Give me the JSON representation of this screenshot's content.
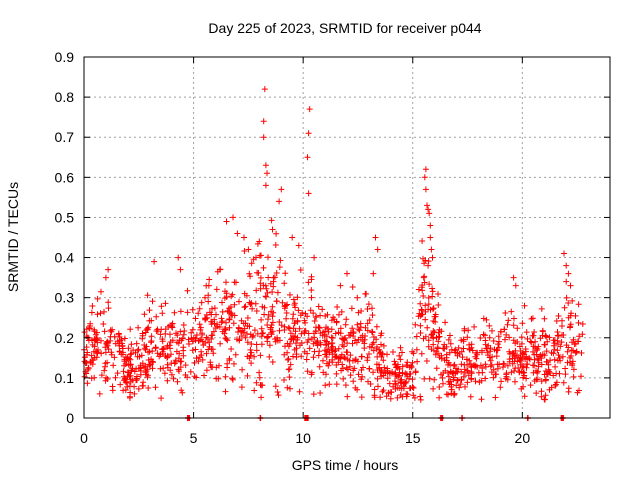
{
  "chart_data": {
    "type": "scatter",
    "title": "Day 225 of 2023, SRMTID for receiver p044",
    "xlabel": "GPS time / hours",
    "ylabel": "SRMTID / TECUs",
    "xlim": [
      0,
      24
    ],
    "ylim": [
      0,
      0.9
    ],
    "x_ticks": [
      0,
      5,
      10,
      15,
      20
    ],
    "x_tick_labels": [
      "0",
      "5",
      "10",
      "15",
      "20"
    ],
    "y_ticks": [
      0,
      0.1,
      0.2,
      0.3,
      0.4,
      0.5,
      0.6,
      0.7,
      0.8,
      0.9
    ],
    "y_tick_labels": [
      "0",
      "0.1",
      "0.2",
      "0.3",
      "0.4",
      "0.5",
      "0.6",
      "0.7",
      "0.8",
      "0.9"
    ],
    "grid": true,
    "marker": "+",
    "color": "#ff0000",
    "profile": [
      [
        0.0,
        0.16,
        0.04
      ],
      [
        0.5,
        0.18,
        0.05
      ],
      [
        1.0,
        0.2,
        0.06
      ],
      [
        1.5,
        0.15,
        0.05
      ],
      [
        2.0,
        0.12,
        0.04
      ],
      [
        2.5,
        0.14,
        0.05
      ],
      [
        3.0,
        0.19,
        0.06
      ],
      [
        3.5,
        0.17,
        0.05
      ],
      [
        4.0,
        0.16,
        0.05
      ],
      [
        4.5,
        0.2,
        0.06
      ],
      [
        5.0,
        0.19,
        0.05
      ],
      [
        5.5,
        0.2,
        0.06
      ],
      [
        6.0,
        0.22,
        0.07
      ],
      [
        6.5,
        0.21,
        0.07
      ],
      [
        7.0,
        0.2,
        0.06
      ],
      [
        7.5,
        0.24,
        0.08
      ],
      [
        8.0,
        0.27,
        0.1
      ],
      [
        8.5,
        0.25,
        0.09
      ],
      [
        9.0,
        0.24,
        0.08
      ],
      [
        9.5,
        0.2,
        0.06
      ],
      [
        10.0,
        0.23,
        0.08
      ],
      [
        10.5,
        0.22,
        0.07
      ],
      [
        11.0,
        0.18,
        0.05
      ],
      [
        11.5,
        0.17,
        0.05
      ],
      [
        12.0,
        0.19,
        0.06
      ],
      [
        12.5,
        0.17,
        0.06
      ],
      [
        13.0,
        0.2,
        0.07
      ],
      [
        13.5,
        0.14,
        0.04
      ],
      [
        14.0,
        0.1,
        0.03
      ],
      [
        14.5,
        0.11,
        0.03
      ],
      [
        15.0,
        0.1,
        0.03
      ],
      [
        15.5,
        0.3,
        0.1
      ],
      [
        16.0,
        0.22,
        0.07
      ],
      [
        16.5,
        0.13,
        0.04
      ],
      [
        17.0,
        0.12,
        0.04
      ],
      [
        17.5,
        0.13,
        0.04
      ],
      [
        18.0,
        0.14,
        0.05
      ],
      [
        18.5,
        0.16,
        0.05
      ],
      [
        19.0,
        0.15,
        0.05
      ],
      [
        19.5,
        0.17,
        0.06
      ],
      [
        20.0,
        0.15,
        0.05
      ],
      [
        20.5,
        0.16,
        0.05
      ],
      [
        21.0,
        0.15,
        0.05
      ],
      [
        21.5,
        0.14,
        0.04
      ],
      [
        22.0,
        0.2,
        0.07
      ],
      [
        22.5,
        0.18,
        0.06
      ],
      [
        22.8,
        0.17,
        0.05
      ]
    ],
    "outliers": [
      [
        8.25,
        0.82
      ],
      [
        8.2,
        0.74
      ],
      [
        8.2,
        0.7
      ],
      [
        8.3,
        0.63
      ],
      [
        8.35,
        0.61
      ],
      [
        8.3,
        0.58
      ],
      [
        10.3,
        0.77
      ],
      [
        10.25,
        0.71
      ],
      [
        10.2,
        0.65
      ],
      [
        10.25,
        0.56
      ],
      [
        9.0,
        0.57
      ],
      [
        8.9,
        0.54
      ],
      [
        15.6,
        0.62
      ],
      [
        15.55,
        0.6
      ],
      [
        15.6,
        0.57
      ],
      [
        15.65,
        0.53
      ],
      [
        15.7,
        0.52
      ],
      [
        15.75,
        0.51
      ],
      [
        15.8,
        0.48
      ],
      [
        15.8,
        0.45
      ],
      [
        15.85,
        0.42
      ],
      [
        15.9,
        0.4
      ],
      [
        15.7,
        0.38
      ],
      [
        15.5,
        0.35
      ],
      [
        13.3,
        0.45
      ],
      [
        13.4,
        0.42
      ],
      [
        13.2,
        0.36
      ],
      [
        6.5,
        0.49
      ],
      [
        6.8,
        0.5
      ],
      [
        7.0,
        0.46
      ],
      [
        4.3,
        0.4
      ],
      [
        4.4,
        0.37
      ],
      [
        3.2,
        0.39
      ],
      [
        1.1,
        0.37
      ],
      [
        1.0,
        0.35
      ],
      [
        21.9,
        0.41
      ],
      [
        22.0,
        0.38
      ],
      [
        22.1,
        0.36
      ],
      [
        22.0,
        0.34
      ],
      [
        22.2,
        0.33
      ],
      [
        19.6,
        0.35
      ],
      [
        19.7,
        0.33
      ],
      [
        20.1,
        0.28
      ],
      [
        12.0,
        0.36
      ],
      [
        11.7,
        0.33
      ],
      [
        9.5,
        0.45
      ],
      [
        9.8,
        0.43
      ],
      [
        10.5,
        0.4
      ],
      [
        7.3,
        0.45
      ],
      [
        7.5,
        0.42
      ],
      [
        8.0,
        0.44
      ],
      [
        8.6,
        0.47
      ],
      [
        5.7,
        0.33
      ],
      [
        6.2,
        0.37
      ],
      [
        14.3,
        0.05
      ],
      [
        14.7,
        0.06
      ],
      [
        2.1,
        0.05
      ],
      [
        2.3,
        0.06
      ],
      [
        15.1,
        0.05
      ],
      [
        21.5,
        0.08
      ]
    ],
    "zero_markers": [
      4.75,
      8.05,
      10.15,
      16.3,
      17.25,
      20.25,
      21.85
    ],
    "zero_bars": [
      [
        4.7,
        4.8
      ],
      [
        10.05,
        10.25
      ],
      [
        16.25,
        16.35
      ],
      [
        21.75,
        21.9
      ]
    ]
  }
}
